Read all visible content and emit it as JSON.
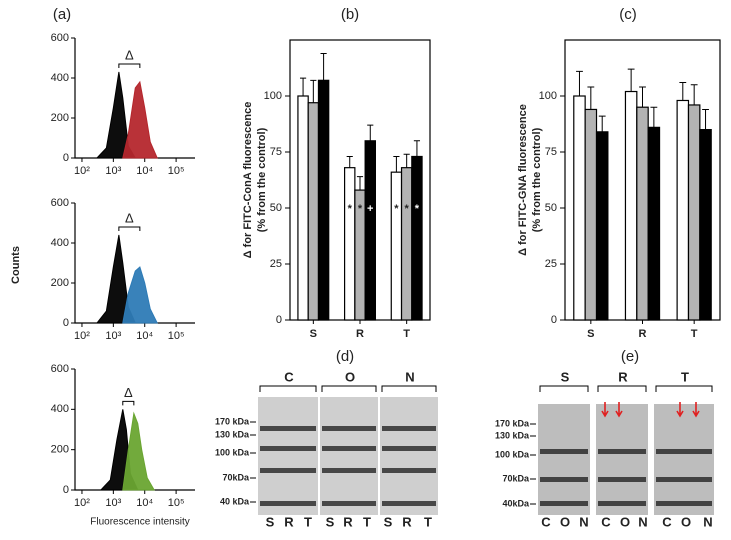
{
  "chart_data": [
    {
      "type": "area",
      "log_x": true,
      "xlim": [
        60,
        400000
      ],
      "ylim": [
        0,
        600
      ],
      "xticks": [
        {
          "value": 100,
          "label": "10²"
        },
        {
          "value": 1000,
          "label": "10³"
        },
        {
          "value": 10000,
          "label": "10⁴"
        },
        {
          "value": 100000,
          "label": "10⁵"
        }
      ],
      "yticks": [
        0,
        200,
        400,
        600
      ],
      "annotation": "Δ",
      "series": [
        {
          "color": "#000000",
          "x": [
            300,
            600,
            1000,
            1500,
            2000,
            3000,
            5000
          ],
          "values": [
            0,
            50,
            250,
            430,
            300,
            60,
            0
          ]
        },
        {
          "color": "#b5272d",
          "x": [
            2000,
            3000,
            5000,
            7000,
            10000,
            15000,
            25000
          ],
          "values": [
            0,
            120,
            350,
            380,
            250,
            80,
            0
          ]
        }
      ]
    },
    {
      "type": "area",
      "log_x": true,
      "xlim": [
        60,
        400000
      ],
      "ylim": [
        0,
        600
      ],
      "xticks": [
        {
          "value": 100,
          "label": "10²"
        },
        {
          "value": 1000,
          "label": "10³"
        },
        {
          "value": 10000,
          "label": "10⁴"
        },
        {
          "value": 100000,
          "label": "10⁵"
        }
      ],
      "yticks": [
        0,
        200,
        400,
        600
      ],
      "annotation": "Δ",
      "series": [
        {
          "color": "#000000",
          "x": [
            300,
            600,
            1000,
            1500,
            2000,
            3000,
            5000
          ],
          "values": [
            0,
            60,
            280,
            440,
            300,
            80,
            0
          ]
        },
        {
          "color": "#2e7bb6",
          "x": [
            2000,
            3000,
            5000,
            7000,
            10000,
            15000,
            25000
          ],
          "values": [
            0,
            150,
            260,
            280,
            200,
            70,
            0
          ]
        }
      ]
    },
    {
      "type": "area",
      "log_x": true,
      "xlim": [
        60,
        400000
      ],
      "ylim": [
        0,
        600
      ],
      "xticks": [
        {
          "value": 100,
          "label": "10²"
        },
        {
          "value": 1000,
          "label": "10³"
        },
        {
          "value": 10000,
          "label": "10⁴"
        },
        {
          "value": 100000,
          "label": "10⁵"
        }
      ],
      "yticks": [
        0,
        200,
        400,
        600
      ],
      "annotation": "Δ",
      "series": [
        {
          "color": "#000000",
          "x": [
            400,
            800,
            1300,
            2000,
            2600,
            3500,
            6000
          ],
          "values": [
            0,
            50,
            250,
            400,
            300,
            80,
            0
          ]
        },
        {
          "color": "#6aa532",
          "x": [
            2000,
            3000,
            4500,
            6000,
            8000,
            12000,
            20000
          ],
          "values": [
            0,
            200,
            380,
            330,
            200,
            60,
            0
          ]
        }
      ]
    },
    {
      "type": "bar",
      "categories": [
        "S",
        "R",
        "T"
      ],
      "ylim": [
        0,
        125
      ],
      "yticks": [
        0,
        25,
        50,
        75,
        100
      ],
      "y_label": [
        "Δ for FITC-ConA fluorescence",
        "(% from the control)"
      ],
      "series": [
        {
          "color": "#ffffff",
          "values": [
            100,
            68,
            66
          ],
          "errors": [
            8,
            5,
            7
          ],
          "markers": [
            null,
            "*",
            "*"
          ]
        },
        {
          "color": "#b3b3b3",
          "values": [
            97,
            58,
            68
          ],
          "errors": [
            10,
            6,
            6
          ],
          "markers": [
            null,
            "*",
            "*"
          ]
        },
        {
          "color": "#000000",
          "values": [
            107,
            80,
            73
          ],
          "errors": [
            12,
            7,
            7
          ],
          "markers": [
            null,
            "+",
            "*"
          ]
        }
      ]
    },
    {
      "type": "bar",
      "categories": [
        "S",
        "R",
        "T"
      ],
      "ylim": [
        0,
        125
      ],
      "yticks": [
        0,
        25,
        50,
        75,
        100
      ],
      "y_label": [
        "Δ for FITC-GNA fluorescence",
        "(% from the control)"
      ],
      "series": [
        {
          "color": "#ffffff",
          "values": [
            100,
            102,
            98
          ],
          "errors": [
            11,
            10,
            8
          ]
        },
        {
          "color": "#b3b3b3",
          "values": [
            94,
            95,
            96
          ],
          "errors": [
            10,
            9,
            9
          ]
        },
        {
          "color": "#000000",
          "values": [
            84,
            86,
            85
          ],
          "errors": [
            7,
            9,
            9
          ]
        }
      ]
    }
  ],
  "figure": {
    "panel_labels": [
      "(a)",
      "(b)",
      "(c)",
      "(d)",
      "(e)"
    ],
    "y_label": "Counts",
    "x_label": "Fluorescence intensity"
  },
  "blots": [
    {
      "groups": [
        "C",
        "O",
        "N"
      ],
      "lanes": [
        "S",
        "R",
        "T",
        "S",
        "R",
        "T",
        "S",
        "R",
        "T"
      ],
      "markers": [
        "170 kDa",
        "130 kDa",
        "100 kDa",
        "70kDa",
        "40 kDa"
      ]
    },
    {
      "groups": [
        "S",
        "R",
        "T"
      ],
      "lanes": [
        "C",
        "O",
        "N",
        "C",
        "O",
        "N",
        "C",
        "O",
        "N"
      ],
      "markers": [
        "170 kDa",
        "130 kDa",
        "100 kDa",
        "70kDa",
        "40kDa"
      ]
    }
  ]
}
